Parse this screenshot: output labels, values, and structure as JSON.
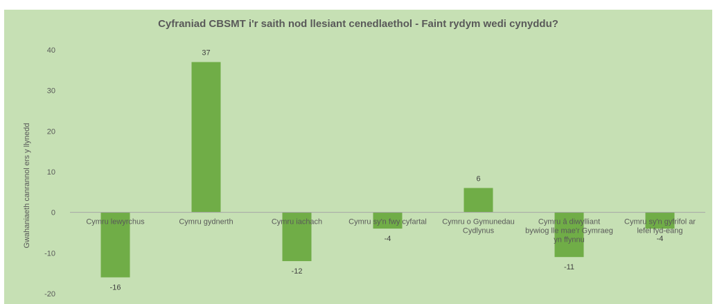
{
  "chart_data": {
    "type": "bar",
    "title": "Cyfraniad CBSMT i'r saith nod llesiant cenedlaethol - Faint rydym wedi cynyddu?",
    "xlabel": "",
    "ylabel": "Gwahaniaeth canrannol ers y llynedd",
    "ylim": [
      -20,
      40
    ],
    "yticks": [
      -20,
      -10,
      0,
      10,
      20,
      30,
      40
    ],
    "grid": false,
    "legend": "none",
    "categories": [
      "Cymru lewyrchus",
      "Cymru gydnerth",
      "Cymru iachach",
      "Cymru sy'n fwy cyfartal",
      "Cymru o Gymunedau Cydlynus",
      "Cymru â diwylliant bywiog lle mae'r Gymraeg yn ffynnu",
      "Cymru sy'n gyfrifol ar lefel fyd-eang"
    ],
    "values": [
      -16,
      37,
      -12,
      -4,
      6,
      -11,
      -4
    ],
    "data_labels": [
      "-16",
      "37",
      "-12",
      "-4",
      "6",
      "-11",
      "-4"
    ],
    "colors": {
      "bar": "#70ad47",
      "background": "#c6e0b4",
      "axis": "#a6a6a6",
      "text": "#595959"
    }
  }
}
